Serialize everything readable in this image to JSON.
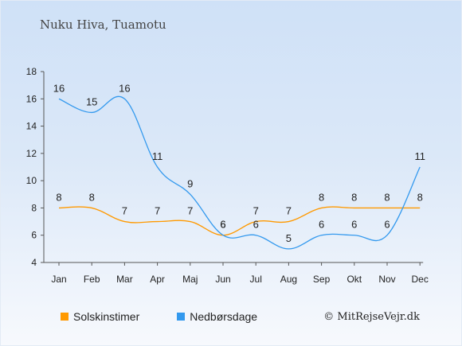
{
  "title": "Nuku Hiva, Tuamotu",
  "credit": "© MitRejseVejr.dk",
  "chart_data": {
    "type": "line",
    "categories": [
      "Jan",
      "Feb",
      "Mar",
      "Apr",
      "Maj",
      "Jun",
      "Jul",
      "Aug",
      "Sep",
      "Okt",
      "Nov",
      "Dec"
    ],
    "yticks": [
      4,
      6,
      8,
      10,
      12,
      14,
      16,
      18
    ],
    "ylim": [
      4,
      18
    ],
    "series": [
      {
        "name": "Solskinstimer",
        "color": "#ff9900",
        "values": [
          8,
          8,
          7,
          7,
          7,
          6,
          7,
          7,
          8,
          8,
          8,
          8
        ]
      },
      {
        "name": "Nedbørsdage",
        "color": "#3399ee",
        "values": [
          16,
          15,
          16,
          11,
          9,
          6,
          6,
          5,
          6,
          6,
          6,
          11
        ]
      }
    ],
    "legend_position": "bottom-left",
    "grid": false
  }
}
